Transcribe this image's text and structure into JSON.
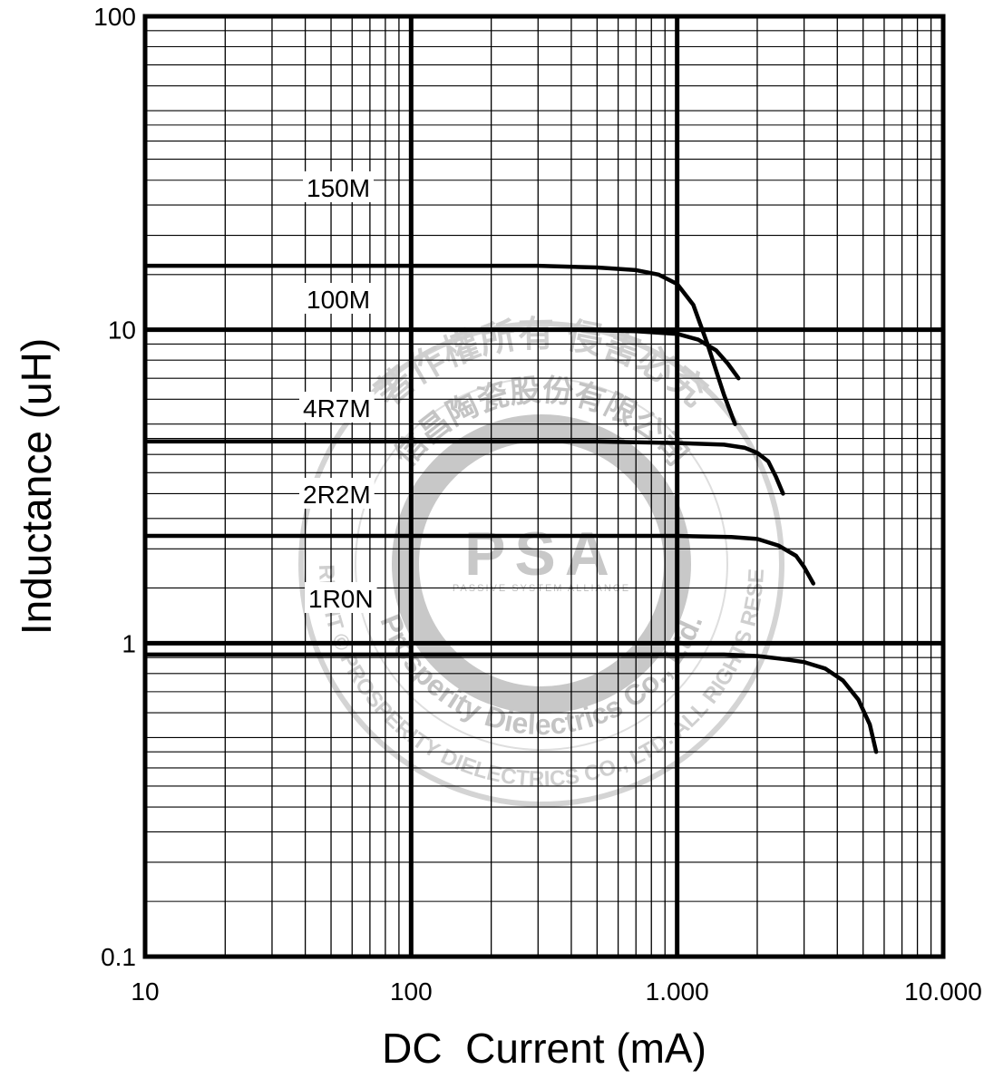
{
  "chart_data": {
    "type": "line",
    "xlabel": "DC  Current (mA)",
    "ylabel": "Inductance (uH)",
    "x_scale": "log",
    "y_scale": "log",
    "xlim": [
      10,
      10000
    ],
    "ylim": [
      0.1,
      100
    ],
    "x_ticks": [
      "10",
      "100",
      "1.000",
      "10.000"
    ],
    "y_ticks": [
      "0.1",
      "1",
      "10",
      "100"
    ],
    "grid": true,
    "legend": "none",
    "series": [
      {
        "name": "150M",
        "x": [
          10,
          100,
          300,
          500,
          700,
          850,
          1000,
          1150,
          1300,
          1500,
          1650
        ],
        "y": [
          16.0,
          16.0,
          16.0,
          15.8,
          15.5,
          15.0,
          14.0,
          12.0,
          9.0,
          6.2,
          5.0
        ]
      },
      {
        "name": "100M",
        "x": [
          10,
          100,
          400,
          700,
          1000,
          1200,
          1400,
          1550,
          1700
        ],
        "y": [
          10.0,
          10.0,
          10.0,
          9.9,
          9.7,
          9.3,
          8.6,
          7.8,
          7.0
        ]
      },
      {
        "name": "4R7M",
        "x": [
          10,
          100,
          500,
          1000,
          1500,
          1800,
          2000,
          2200,
          2350,
          2500
        ],
        "y": [
          4.4,
          4.4,
          4.4,
          4.35,
          4.3,
          4.2,
          4.05,
          3.8,
          3.4,
          3.0
        ]
      },
      {
        "name": "2R2M",
        "x": [
          10,
          100,
          600,
          1000,
          1600,
          2000,
          2400,
          2800,
          3000,
          3250
        ],
        "y": [
          2.2,
          2.2,
          2.2,
          2.2,
          2.18,
          2.15,
          2.05,
          1.9,
          1.75,
          1.55
        ]
      },
      {
        "name": "1R0N",
        "x": [
          10,
          100,
          800,
          1500,
          2000,
          2500,
          3000,
          3600,
          4200,
          4800,
          5300,
          5600
        ],
        "y": [
          0.92,
          0.92,
          0.92,
          0.92,
          0.91,
          0.89,
          0.87,
          0.83,
          0.76,
          0.66,
          0.55,
          0.45
        ]
      }
    ],
    "watermark": {
      "logo": "PSA",
      "tagline": "PASSIVE SYSTEM ALLIANCE",
      "ring_top": "著作權所有 侵害必究",
      "ring_upper": "信昌陶瓷股份有限公司",
      "ring_mid": "Prosperity Dielectrics Co., Ltd.",
      "ring_lower": "COPYRIGHT © PROSPERITY DIELECTRICS CO., LTD. ALL RIGHTS RESERVED."
    }
  }
}
